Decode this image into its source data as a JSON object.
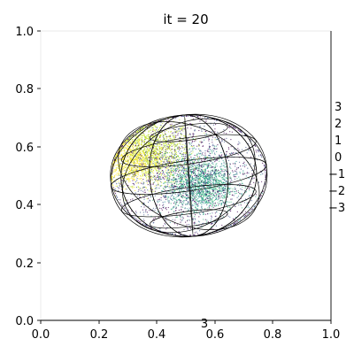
{
  "chart_data": {
    "type": "scatter",
    "title": "it = 20",
    "xlabel": "",
    "ylabel": "",
    "xlim": [
      0.0,
      1.0
    ],
    "ylim": [
      0.0,
      1.0
    ],
    "x_ticks": [
      "0.0",
      "0.2",
      "0.4",
      "0.6",
      "0.8",
      "1.0"
    ],
    "y_ticks": [
      "0.0",
      "0.2",
      "0.4",
      "0.6",
      "0.8",
      "1.0"
    ],
    "right_axis_ticks": [
      "3",
      "2",
      "1",
      "0",
      "−1",
      "−2",
      "−3"
    ],
    "bottom_annotation": "3",
    "grid": false,
    "colormap": "viridis",
    "sphere": {
      "center": [
        0.51,
        0.5
      ],
      "radius_x": 0.27,
      "radius_y": 0.21,
      "meridians": 6,
      "parallels": 5,
      "color": "#000000"
    },
    "point_clusters": [
      {
        "center": [
          0.38,
          0.58
        ],
        "spread": 0.07,
        "color": "#bddf26",
        "count": 1400
      },
      {
        "center": [
          0.31,
          0.55
        ],
        "spread": 0.05,
        "color": "#fde725",
        "count": 700
      },
      {
        "center": [
          0.55,
          0.47
        ],
        "spread": 0.06,
        "color": "#35b779",
        "count": 900
      },
      {
        "center": [
          0.55,
          0.47
        ],
        "spread": 0.07,
        "color": "#21918c",
        "count": 700
      },
      {
        "center": [
          0.51,
          0.5
        ],
        "spread": 0.14,
        "color": "#3b528b",
        "count": 900
      },
      {
        "center": [
          0.51,
          0.5
        ],
        "spread": 0.14,
        "color": "#440154",
        "count": 800
      }
    ]
  }
}
